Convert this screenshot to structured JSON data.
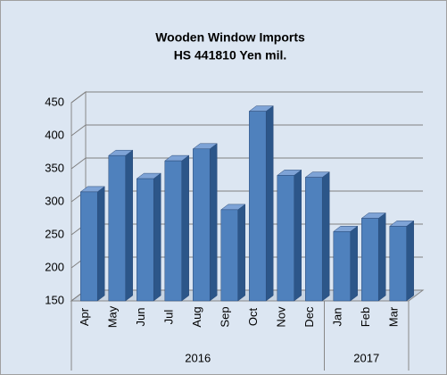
{
  "chart_data": {
    "type": "bar",
    "title": "Wooden Window Imports",
    "subtitle": "HS 441810 Yen mil.",
    "categories": [
      "Apr",
      "May",
      "Jun",
      "Jul",
      "Aug",
      "Sep",
      "Oct",
      "Nov",
      "Dec",
      "Jan",
      "Feb",
      "Mar"
    ],
    "category_groups": [
      "2016",
      "2016",
      "2016",
      "2016",
      "2016",
      "2016",
      "2016",
      "2016",
      "2016",
      "2017",
      "2017",
      "2017"
    ],
    "values": [
      315,
      370,
      335,
      362,
      380,
      288,
      437,
      340,
      337,
      255,
      275,
      263
    ],
    "color": "#4f81bd",
    "ylim": [
      150,
      450
    ],
    "yticks": [
      150,
      200,
      250,
      300,
      350,
      400,
      450
    ],
    "grid": true
  }
}
